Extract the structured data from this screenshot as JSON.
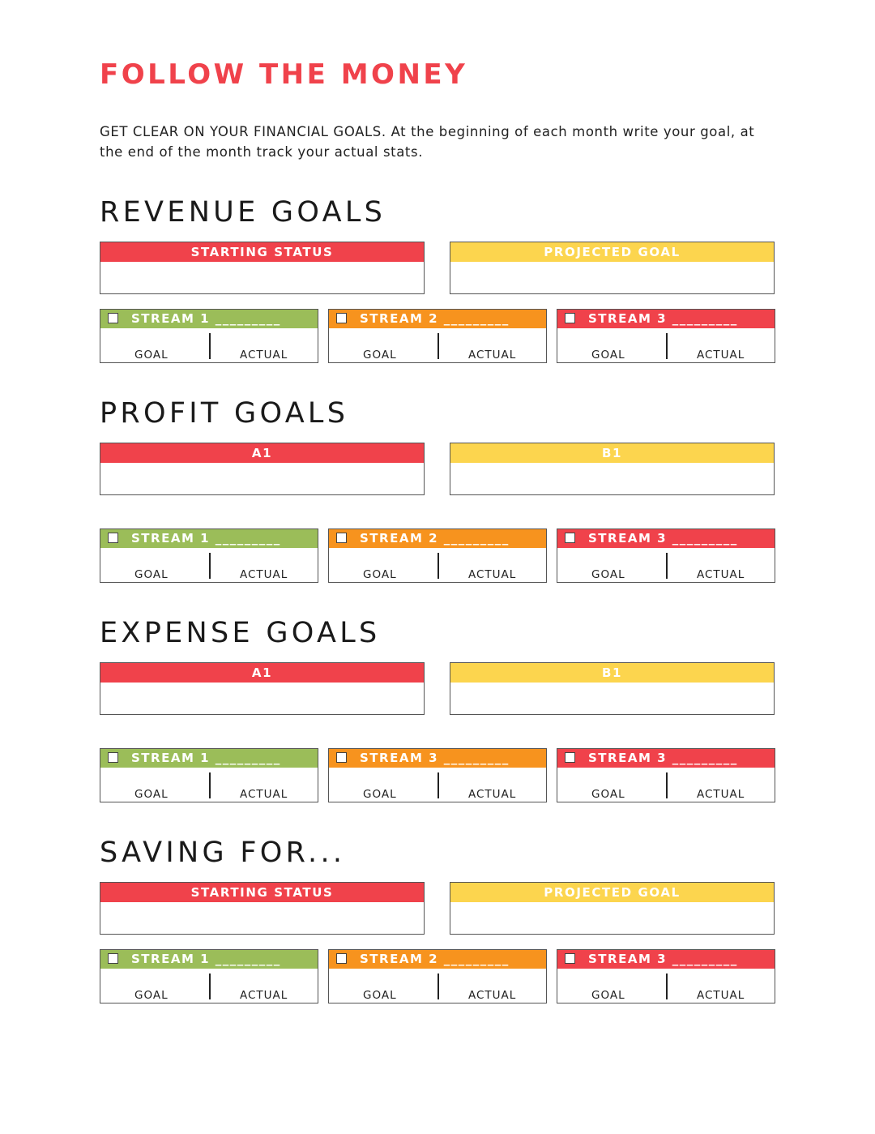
{
  "title": "FOLLOW THE MONEY",
  "intro": "GET CLEAR ON YOUR FINANCIAL GOALS. At the beginning of each month write your goal, at the end of the month track your actual stats.",
  "colors": {
    "red": "#f0424b",
    "yellow": "#fcd54e",
    "green": "#9bbd59",
    "orange": "#f7931e"
  },
  "labels": {
    "goal": "GOAL",
    "actual": "ACTUAL"
  },
  "sections": [
    {
      "heading": "REVENUE GOALS",
      "left_box": "STARTING STATUS",
      "right_box": "PROJECTED GOAL",
      "streams": [
        "STREAM 1 _________",
        "STREAM 2 _________",
        "STREAM 3 _________"
      ]
    },
    {
      "heading": "PROFIT GOALS",
      "left_box": "A1",
      "right_box": "B1",
      "streams": [
        "STREAM 1 _________",
        "STREAM 2 _________",
        "STREAM 3 _________"
      ]
    },
    {
      "heading": "EXPENSE GOALS",
      "left_box": "A1",
      "right_box": "B1",
      "streams": [
        "STREAM 1 _________",
        "STREAM 3 _________",
        "STREAM 3 _________"
      ]
    },
    {
      "heading": "SAVING FOR...",
      "left_box": "STARTING STATUS",
      "right_box": "PROJECTED GOAL",
      "streams": [
        "STREAM 1 _________",
        "STREAM 2 _________",
        "STREAM 3 _________"
      ]
    }
  ]
}
